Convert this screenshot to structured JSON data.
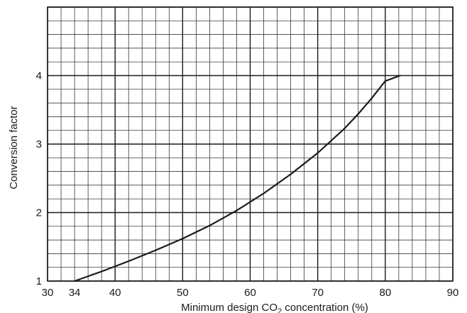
{
  "chart_data": {
    "type": "line",
    "title": "",
    "xlabel_main": "Minimum design CO",
    "xlabel_sub": "2",
    "xlabel_tail": " concentration (%)",
    "ylabel": "Conversion factor",
    "xlim": [
      30,
      90
    ],
    "ylim": [
      1,
      5
    ],
    "x_ticks": [
      30,
      34,
      40,
      50,
      60,
      70,
      80,
      90
    ],
    "y_ticks": [
      1,
      2,
      3,
      4
    ],
    "x_major_step": 10,
    "x_minor_step": 2,
    "y_minor_step": 0.2,
    "grid": true,
    "line_color": "#1a1a1a",
    "grid_color": "#1a1a1a",
    "series": [
      {
        "x": [
          34,
          38,
          42,
          46,
          50,
          54,
          58,
          62,
          66,
          70,
          74,
          76,
          78,
          80,
          82.2
        ],
        "y": [
          1.0,
          1.14,
          1.29,
          1.45,
          1.62,
          1.81,
          2.03,
          2.28,
          2.56,
          2.87,
          3.23,
          3.44,
          3.67,
          3.92,
          4.0
        ]
      }
    ]
  }
}
